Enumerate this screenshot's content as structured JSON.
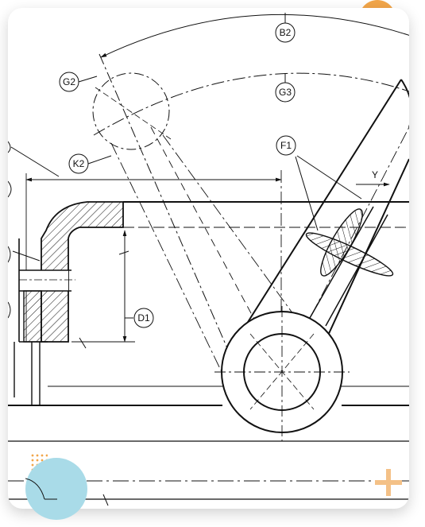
{
  "drawing": {
    "labels": {
      "b2": "B2",
      "g2": "G2",
      "g3": "G3",
      "f1": "F1",
      "k2": "K2",
      "d1": "D1",
      "y": "Y"
    }
  },
  "colors": {
    "line": "#111111",
    "accent_orange": "#f2a64a",
    "accent_blue": "#a9dbe8",
    "accent_plus": "#f4c187"
  }
}
